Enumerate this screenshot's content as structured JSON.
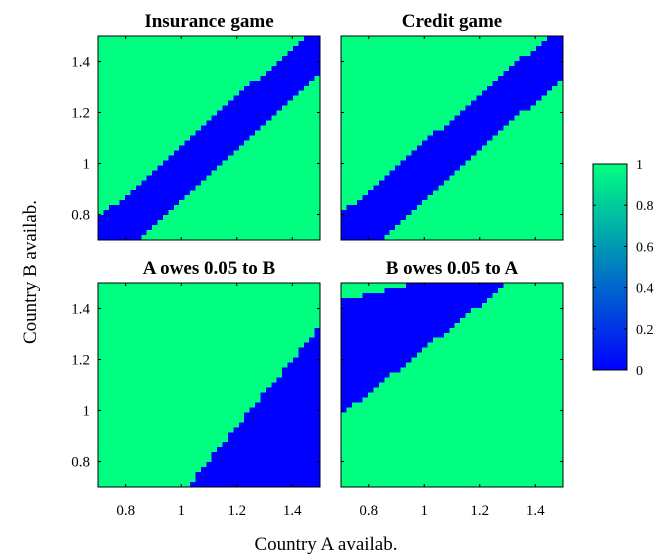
{
  "chart_data": {
    "type": "heatmap",
    "xlabel": "Country A availab.",
    "ylabel": "Country B availab.",
    "xlim": [
      0.7,
      1.5
    ],
    "ylim": [
      0.7,
      1.5
    ],
    "xticks": [
      0.8,
      1,
      1.2,
      1.4
    ],
    "xtick_labels": [
      "0.8",
      "1",
      "1.2",
      "1.4"
    ],
    "yticks": [
      0.8,
      1,
      1.2,
      1.4
    ],
    "ytick_labels": [
      "0.8",
      "1",
      "1.2",
      "1.4"
    ],
    "value_low": 0,
    "value_high": 1,
    "grid_resolution": 41,
    "colors": {
      "low": "#0000ff",
      "high": "#00ff80",
      "frame": "#000000"
    },
    "colorbar": {
      "min": 0,
      "max": 1,
      "ticks": [
        0,
        0.2,
        0.4,
        0.6,
        0.8,
        1
      ],
      "tick_labels": [
        "0",
        "0.2",
        "0.4",
        "0.6",
        "0.8",
        "1"
      ],
      "placement": "right"
    },
    "panels": [
      {
        "title": "Insurance game",
        "region_value_0": {
          "bound_a": {
            "x0": 0.7,
            "y0": 0.78,
            "x1": 1.5,
            "y1": 1.55
          },
          "bound_b": {
            "x0": 0.84,
            "y0": 0.7,
            "x1": 1.5,
            "y1": 1.36
          }
        }
      },
      {
        "title": "Credit game",
        "region_value_0": {
          "bound_a": {
            "x0": 0.7,
            "y0": 0.8,
            "x1": 1.5,
            "y1": 1.55
          },
          "bound_b": {
            "x0": 0.84,
            "y0": 0.7,
            "x1": 1.5,
            "y1": 1.34
          }
        }
      },
      {
        "title": "A owes 0.05 to B",
        "region_value_0": {
          "bound_a": {
            "x0": 1.02,
            "y0": 0.7,
            "x1": 1.5,
            "y1": 1.33
          },
          "bound_b": {
            "x0": 1.5,
            "y0": 0.7,
            "x1": 1.5,
            "y1": 0.7
          }
        }
      },
      {
        "title": "B owes 0.05 to A",
        "region_value_0": {
          "bound_a": {
            "x0": 0.7,
            "y0": 1.43,
            "x1": 0.97,
            "y1": 1.5
          },
          "bound_b": {
            "x0": 0.7,
            "y0": 0.98,
            "x1": 1.3,
            "y1": 1.5
          }
        }
      }
    ]
  }
}
